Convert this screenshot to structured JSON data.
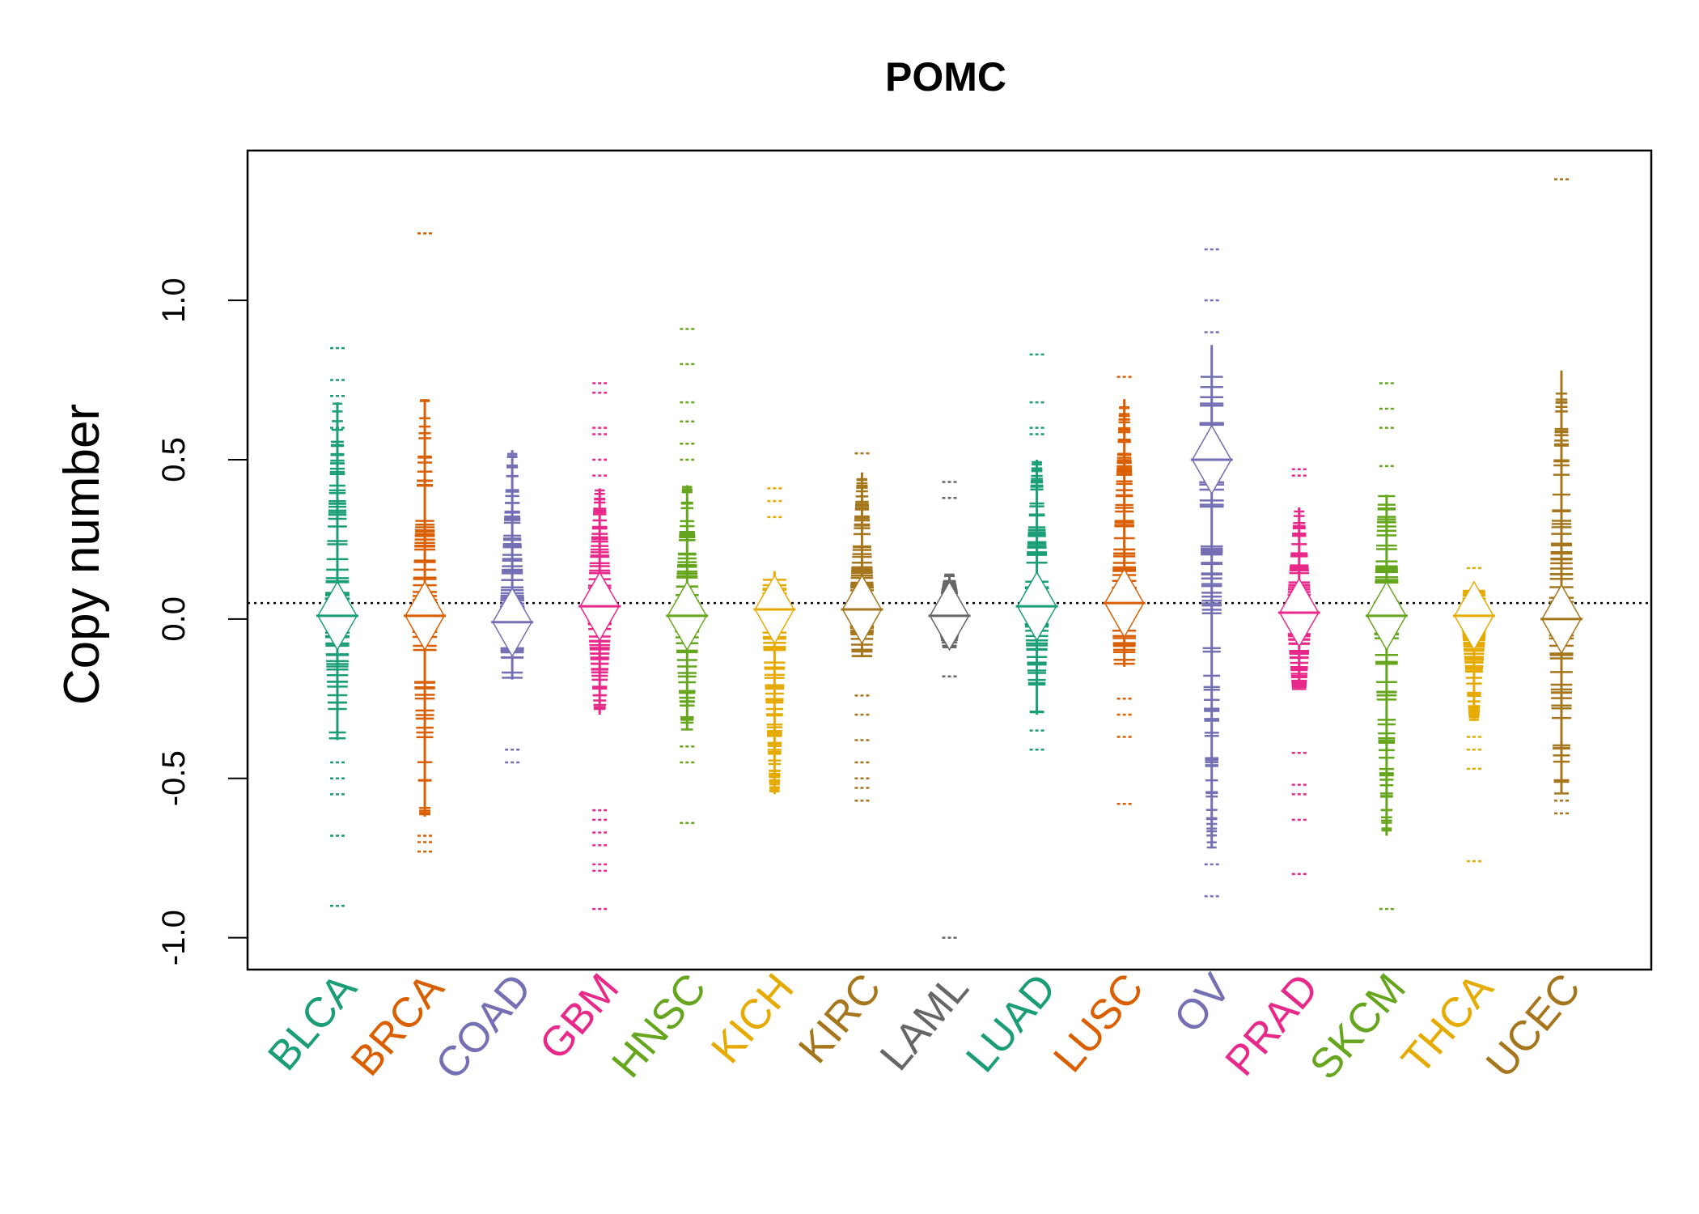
{
  "chart_data": {
    "type": "beanplot",
    "title": "POMC",
    "ylabel": "Copy number",
    "xlabel": "",
    "ylim": [
      -1.1,
      1.47
    ],
    "yticks": [
      -1.0,
      -0.5,
      0.0,
      0.5,
      1.0
    ],
    "ytick_labels": [
      "-1.0",
      "-0.5",
      "0.0",
      "0.5",
      "1.0"
    ],
    "reference_line": 0.05,
    "categories": [
      "BLCA",
      "BRCA",
      "COAD",
      "GBM",
      "HNSC",
      "KICH",
      "KIRC",
      "LAML",
      "LUAD",
      "LUSC",
      "OV",
      "PRAD",
      "SKCM",
      "THCA",
      "UCEC"
    ],
    "colors": [
      "#1B9E77",
      "#D95F02",
      "#7570B3",
      "#E7298A",
      "#66A61E",
      "#E6AB02",
      "#A6761D",
      "#666666",
      "#1B9E77",
      "#D95F02",
      "#7570B3",
      "#E7298A",
      "#66A61E",
      "#E6AB02",
      "#A6761D"
    ],
    "series": [
      {
        "category": "BLCA",
        "min": -0.9,
        "max": 0.85,
        "mean": 0.01,
        "core": [
          -0.38,
          0.68
        ],
        "outliers": [
          0.85,
          0.75,
          0.7,
          0.6,
          -0.45,
          -0.5,
          -0.55,
          -0.68,
          -0.9
        ]
      },
      {
        "category": "BRCA",
        "min": -0.73,
        "max": 1.21,
        "mean": 0.01,
        "core": [
          -0.62,
          0.69
        ],
        "outliers": [
          1.21,
          -0.68,
          -0.7,
          -0.73
        ]
      },
      {
        "category": "COAD",
        "min": -0.45,
        "max": 0.53,
        "mean": -0.01,
        "core": [
          -0.19,
          0.53
        ],
        "outliers": [
          -0.41,
          -0.45
        ]
      },
      {
        "category": "GBM",
        "min": -0.91,
        "max": 0.74,
        "mean": 0.04,
        "core": [
          -0.3,
          0.41
        ],
        "outliers": [
          0.74,
          0.71,
          0.6,
          0.58,
          0.5,
          0.45,
          -0.6,
          -0.63,
          -0.67,
          -0.71,
          -0.77,
          -0.79,
          -0.91
        ]
      },
      {
        "category": "HNSC",
        "min": -0.64,
        "max": 0.91,
        "mean": 0.01,
        "core": [
          -0.35,
          0.42
        ],
        "outliers": [
          0.91,
          0.8,
          0.68,
          0.62,
          0.55,
          0.5,
          -0.4,
          -0.45,
          -0.64
        ]
      },
      {
        "category": "KICH",
        "min": -0.57,
        "max": 0.41,
        "mean": 0.03,
        "core": [
          -0.55,
          0.15
        ],
        "outliers": [
          0.41,
          0.37,
          0.32
        ]
      },
      {
        "category": "KIRC",
        "min": -0.57,
        "max": 0.52,
        "mean": 0.03,
        "core": [
          -0.12,
          0.46
        ],
        "outliers": [
          0.52,
          -0.24,
          -0.3,
          -0.38,
          -0.45,
          -0.5,
          -0.53,
          -0.57
        ]
      },
      {
        "category": "LAML",
        "min": -1.0,
        "max": 0.43,
        "mean": 0.01,
        "core": [
          -0.09,
          0.14
        ],
        "outliers": [
          0.43,
          0.38,
          -0.18,
          -1.0
        ]
      },
      {
        "category": "LUAD",
        "min": -0.41,
        "max": 0.83,
        "mean": 0.04,
        "core": [
          -0.3,
          0.5
        ],
        "outliers": [
          0.83,
          0.68,
          0.6,
          0.58,
          -0.35,
          -0.41
        ]
      },
      {
        "category": "LUSC",
        "min": -0.58,
        "max": 0.76,
        "mean": 0.05,
        "core": [
          -0.15,
          0.69
        ],
        "outliers": [
          0.76,
          -0.25,
          -0.3,
          -0.37,
          -0.58
        ]
      },
      {
        "category": "OV",
        "min": -0.87,
        "max": 1.16,
        "mean": 0.5,
        "core": [
          -0.72,
          0.86
        ],
        "outliers": [
          1.16,
          1.0,
          0.9,
          -0.77,
          -0.87
        ]
      },
      {
        "category": "PRAD",
        "min": -0.8,
        "max": 0.47,
        "mean": 0.02,
        "core": [
          -0.22,
          0.35
        ],
        "outliers": [
          0.47,
          0.45,
          -0.42,
          -0.52,
          -0.55,
          -0.63,
          -0.8
        ]
      },
      {
        "category": "SKCM",
        "min": -0.91,
        "max": 0.74,
        "mean": 0.01,
        "core": [
          -0.68,
          0.39
        ],
        "outliers": [
          0.74,
          0.66,
          0.6,
          0.48,
          -0.91
        ]
      },
      {
        "category": "THCA",
        "min": -0.76,
        "max": 0.16,
        "mean": 0.01,
        "core": [
          -0.32,
          0.1
        ],
        "outliers": [
          0.16,
          -0.37,
          -0.41,
          -0.47,
          -0.76
        ]
      },
      {
        "category": "UCEC",
        "min": -0.61,
        "max": 1.38,
        "mean": 0.0,
        "core": [
          -0.55,
          0.78
        ],
        "outliers": [
          1.38,
          -0.57,
          -0.61
        ]
      }
    ]
  }
}
